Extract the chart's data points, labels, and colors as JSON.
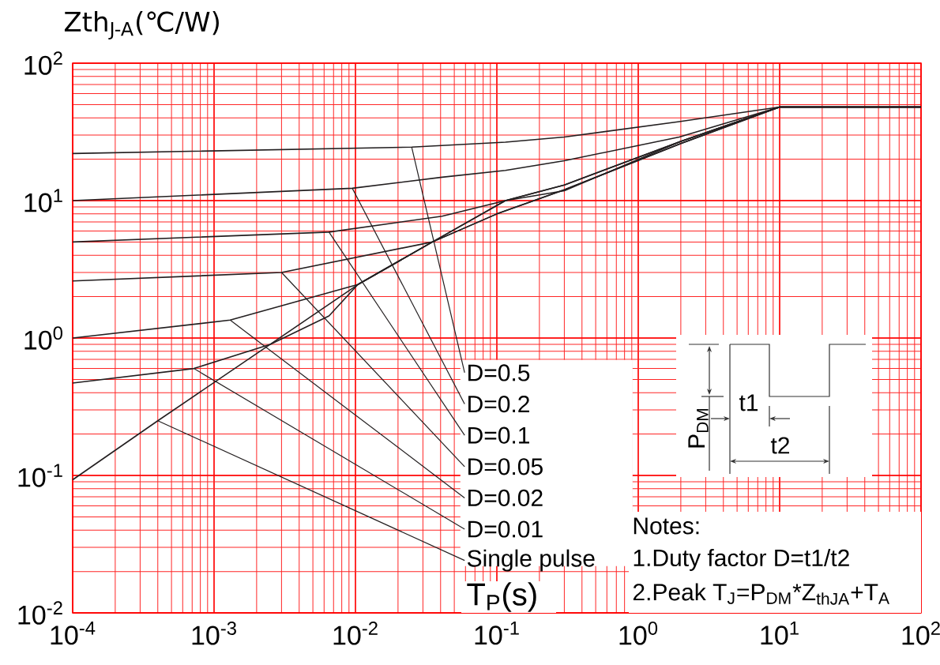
{
  "chart_data": {
    "type": "line",
    "ylabel": "Zth$_{J-A}$(℃/W)",
    "xlabel": "T$_{P}$(s)",
    "log": "xy",
    "grid": true,
    "xlim": [
      0.0001,
      100
    ],
    "ylim": [
      0.01,
      100
    ],
    "xticks": [
      {
        "value": 0.0001,
        "label": "10$^{-4}$"
      },
      {
        "value": 0.001,
        "label": "10$^{-3}$"
      },
      {
        "value": 0.01,
        "label": "10$^{-2}$"
      },
      {
        "value": 0.1,
        "label": "10$^{-1}$"
      },
      {
        "value": 1,
        "label": "10$^{0}$"
      },
      {
        "value": 10,
        "label": "10$^{1}$"
      },
      {
        "value": 100,
        "label": "10$^{2}$"
      }
    ],
    "yticks": [
      {
        "value": 0.01,
        "label": "10$^{-2}$"
      },
      {
        "value": 0.1,
        "label": "10$^{-1}$"
      },
      {
        "value": 1,
        "label": "10$^{0}$"
      },
      {
        "value": 10,
        "label": "10$^{1}$"
      },
      {
        "value": 100,
        "label": "10$^{2}$"
      }
    ],
    "series": [
      {
        "name": "D=0.5",
        "color": "#231f20",
        "x": [
          0.0001,
          0.025,
          0.115,
          0.3,
          1.95,
          10,
          100
        ],
        "values": [
          22,
          24.5,
          26.6,
          29,
          37.6,
          48,
          48
        ]
      },
      {
        "name": "D=0.2",
        "color": "#231f20",
        "x": [
          0.0001,
          0.0095,
          0.041,
          0.115,
          0.3,
          1.95,
          10,
          100
        ],
        "values": [
          10,
          12.3,
          14.8,
          16.6,
          19.5,
          29,
          48,
          48
        ]
      },
      {
        "name": "D=0.1",
        "color": "#231f20",
        "x": [
          0.0001,
          0.0065,
          0.041,
          0.115,
          0.3,
          2,
          10,
          100
        ],
        "values": [
          5.0,
          5.9,
          7.7,
          10,
          13,
          27,
          48,
          48
        ]
      },
      {
        "name": "D=0.05",
        "color": "#231f20",
        "x": [
          0.0001,
          0.003,
          0.035,
          0.1,
          0.3,
          2,
          10,
          100
        ],
        "values": [
          2.6,
          3.0,
          5.0,
          8,
          12,
          26,
          48,
          48
        ]
      },
      {
        "name": "D=0.02",
        "color": "#231f20",
        "x": [
          0.0001,
          0.0013,
          0.0104,
          0.035,
          0.1,
          0.3,
          2,
          10,
          100
        ],
        "values": [
          1.0,
          1.35,
          2.45,
          5.0,
          8,
          12,
          26,
          48,
          48
        ]
      },
      {
        "name": "D=0.01",
        "color": "#231f20",
        "x": [
          0.0001,
          0.00072,
          0.0025,
          0.0065,
          0.0104,
          0.035,
          0.115,
          0.3,
          2,
          10,
          100
        ],
        "values": [
          0.47,
          0.6,
          0.9,
          1.45,
          2.45,
          5.0,
          10,
          13,
          27,
          48,
          48
        ]
      },
      {
        "name": "Single pulse",
        "color": "#231f20",
        "x": [
          0.0001,
          0.0004,
          0.0025,
          0.0104,
          0.035,
          0.115,
          0.3,
          2,
          10,
          100
        ],
        "values": [
          0.093,
          0.25,
          0.9,
          2.45,
          5.0,
          10,
          11.8,
          27,
          48,
          48
        ]
      }
    ],
    "annotations": [
      "Notes:",
      "1.Duty factor D=t1/t2",
      "2.Peak T$_{J}$=P$_{DM}$*Z$_{thJA}$+T$_{A}$",
      "P$_{DM}$",
      "t1",
      "t2"
    ]
  }
}
